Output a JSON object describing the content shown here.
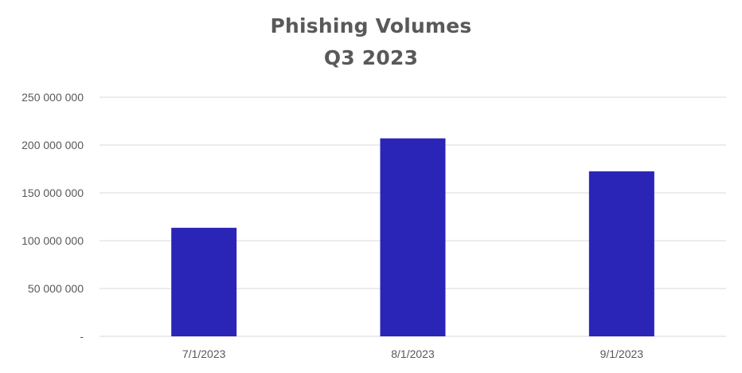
{
  "chart_data": {
    "type": "bar",
    "title": "Phishing Volumes",
    "subtitle": "Q3 2023",
    "xlabel": "",
    "ylabel": "",
    "categories": [
      "7/1/2023",
      "8/1/2023",
      "9/1/2023"
    ],
    "values": [
      113500000,
      207000000,
      172500000
    ],
    "ylim": [
      0,
      250000000
    ],
    "yticks": [
      0,
      50000000,
      100000000,
      150000000,
      200000000,
      250000000
    ],
    "ytick_labels": [
      "-",
      "50 000 000",
      "100 000 000",
      "150 000 000",
      "200 000 000",
      "250 000 000"
    ],
    "grid": true,
    "legend": "none",
    "bar_color": "#2a25b6",
    "grid_color": "#d9d9d9",
    "text_color": "#595959"
  }
}
